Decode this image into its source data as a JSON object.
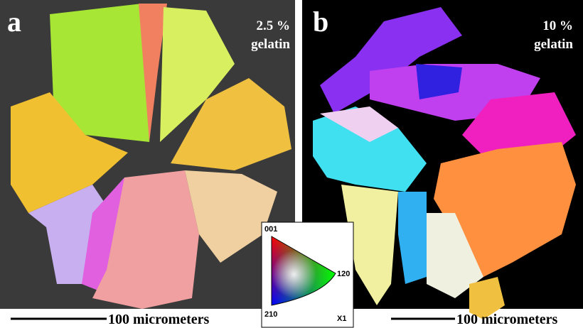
{
  "panels": [
    {
      "label": "a",
      "annotation": [
        "2.5 %",
        "gelatin"
      ],
      "scale_bar": "100 micrometers"
    },
    {
      "label": "b",
      "annotation": [
        "10 %",
        "gelatin"
      ],
      "scale_bar": "100 micrometers"
    }
  ],
  "legend": {
    "top": "001",
    "right": "120",
    "bottom": "210",
    "axis": "X1"
  }
}
